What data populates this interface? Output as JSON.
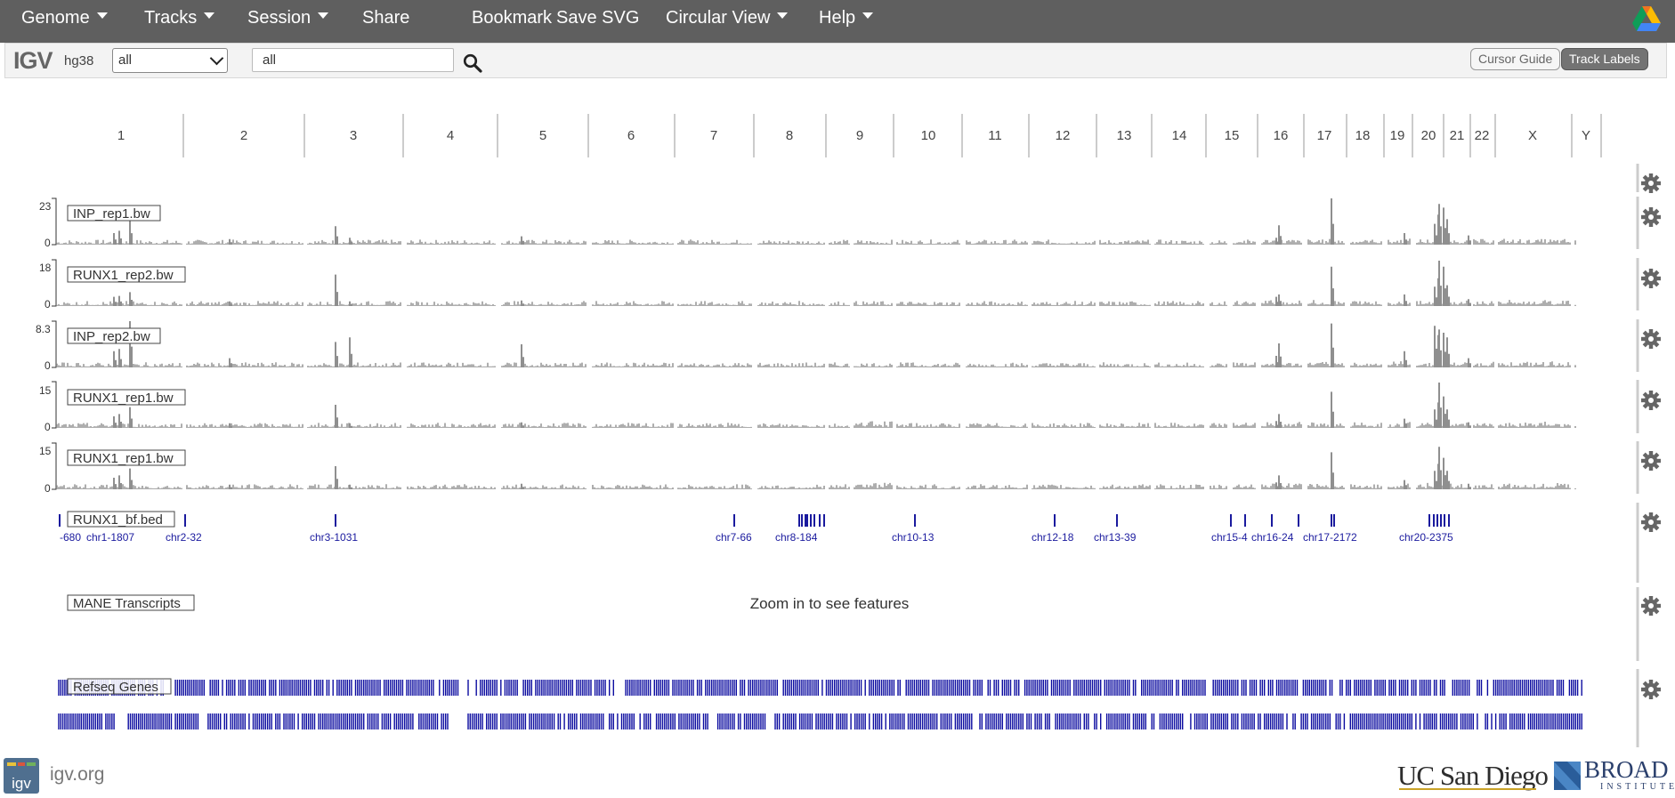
{
  "nav": {
    "menus": [
      {
        "label": "Genome",
        "dropdown": true
      },
      {
        "label": "Tracks",
        "dropdown": true
      },
      {
        "label": "Session",
        "dropdown": true
      },
      {
        "label": "Share",
        "dropdown": false
      },
      {
        "label": "Bookmark",
        "dropdown": false
      },
      {
        "label": "Save SVG",
        "dropdown": false
      },
      {
        "label": "Circular View",
        "dropdown": true
      },
      {
        "label": "Help",
        "dropdown": true
      }
    ],
    "drive_icon": "google-drive-icon"
  },
  "controls": {
    "logo": "IGV",
    "genome": "hg38",
    "chromosome_selected": "all",
    "locus_value": "all",
    "search_icon": "search-icon",
    "cursor_guide_label": "Cursor Guide",
    "track_labels_label": "Track Labels"
  },
  "ideogram": {
    "chromosomes": [
      "1",
      "2",
      "3",
      "4",
      "5",
      "6",
      "7",
      "8",
      "9",
      "10",
      "11",
      "12",
      "13",
      "14",
      "15",
      "16",
      "17",
      "18",
      "19",
      "20",
      "21",
      "22",
      "X",
      "Y"
    ]
  },
  "tracks": [
    {
      "name": "INP_rep1.bw",
      "max": "23",
      "min": "0",
      "color": "#999999"
    },
    {
      "name": "RUNX1_rep2.bw",
      "max": "18",
      "min": "0",
      "color": "#999999"
    },
    {
      "name": "INP_rep2.bw",
      "max": "8.3",
      "min": "0",
      "color": "#999999"
    },
    {
      "name": "RUNX1_rep1.bw",
      "max": "15",
      "min": "0",
      "color": "#999999"
    },
    {
      "name": "RUNX1_rep1.bw",
      "max": "15",
      "min": "0",
      "color": "#999999"
    }
  ],
  "bed_track": {
    "name": "RUNX1_bf.bed",
    "color": "#1a1a9e",
    "feature_labels": [
      "-680",
      "chr1-1807",
      "chr2-32",
      "chr3-1031",
      "chr7-66",
      "chr8-184",
      "chr10-13",
      "chr12-18",
      "chr13-39",
      "chr15-4",
      "chr16-24",
      "chr17-2172",
      "chr20-2375"
    ]
  },
  "mane_track": {
    "name": "MANE Transcripts",
    "message": "Zoom in to see features"
  },
  "refseq_track": {
    "name": "Refseq Genes",
    "color": "#0c0ca0"
  },
  "gear_icon": "gear-icon",
  "footer": {
    "igv_link": "igv.org",
    "ucsd_logo": "UC San Diego",
    "broad_logo_line1": "BROAD",
    "broad_logo_line2": "INSTITUTE"
  }
}
